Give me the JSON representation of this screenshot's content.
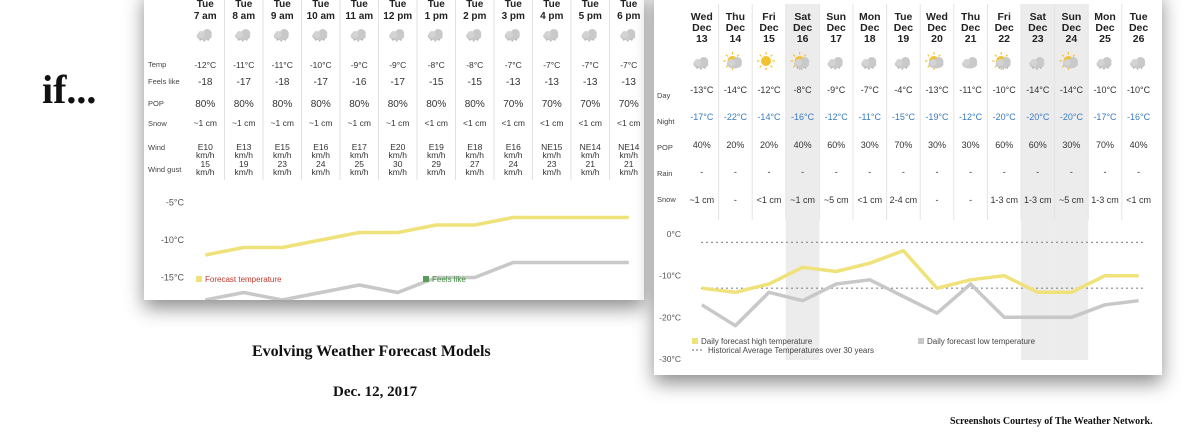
{
  "intro_text": "if...",
  "caption": {
    "title": "Evolving Weather Forecast Models",
    "date": "Dec. 12, 2017"
  },
  "credit": "Screenshots Courtesy of The Weather Network.",
  "colors": {
    "high": "#f0e27a",
    "low": "#c8c8c8",
    "avg": "#888888",
    "weekend": "#ececec"
  },
  "hourly": {
    "row_labels": {
      "temp": "Temp",
      "feels": "Feels like",
      "pop": "POP",
      "snow": "Snow",
      "wind": "Wind",
      "gust": "Wind gust"
    },
    "hours": [
      {
        "day": "Tue",
        "time": "7 am",
        "temp": "-12°C",
        "feels": "-18",
        "pop": "80%",
        "snow": "~1 cm",
        "wind": "E10",
        "wind_unit": "km/h",
        "gust": "15",
        "gust_unit": "km/h",
        "icon": "snow-cloud-icon"
      },
      {
        "day": "Tue",
        "time": "8 am",
        "temp": "-11°C",
        "feels": "-17",
        "pop": "80%",
        "snow": "~1 cm",
        "wind": "E13",
        "wind_unit": "km/h",
        "gust": "19",
        "gust_unit": "km/h",
        "icon": "snow-cloud-icon"
      },
      {
        "day": "Tue",
        "time": "9 am",
        "temp": "-11°C",
        "feels": "-18",
        "pop": "80%",
        "snow": "~1 cm",
        "wind": "E15",
        "wind_unit": "km/h",
        "gust": "23",
        "gust_unit": "km/h",
        "icon": "snow-cloud-icon"
      },
      {
        "day": "Tue",
        "time": "10 am",
        "temp": "-10°C",
        "feels": "-17",
        "pop": "80%",
        "snow": "~1 cm",
        "wind": "E16",
        "wind_unit": "km/h",
        "gust": "24",
        "gust_unit": "km/h",
        "icon": "snow-cloud-icon"
      },
      {
        "day": "Tue",
        "time": "11 am",
        "temp": "-9°C",
        "feels": "-16",
        "pop": "80%",
        "snow": "~1 cm",
        "wind": "E17",
        "wind_unit": "km/h",
        "gust": "25",
        "gust_unit": "km/h",
        "icon": "snow-cloud-icon"
      },
      {
        "day": "Tue",
        "time": "12 pm",
        "temp": "-9°C",
        "feels": "-17",
        "pop": "80%",
        "snow": "~1 cm",
        "wind": "E20",
        "wind_unit": "km/h",
        "gust": "30",
        "gust_unit": "km/h",
        "icon": "snow-cloud-icon"
      },
      {
        "day": "Tue",
        "time": "1 pm",
        "temp": "-8°C",
        "feels": "-15",
        "pop": "80%",
        "snow": "<1 cm",
        "wind": "E19",
        "wind_unit": "km/h",
        "gust": "29",
        "gust_unit": "km/h",
        "icon": "snow-cloud-icon"
      },
      {
        "day": "Tue",
        "time": "2 pm",
        "temp": "-8°C",
        "feels": "-15",
        "pop": "80%",
        "snow": "<1 cm",
        "wind": "E18",
        "wind_unit": "km/h",
        "gust": "27",
        "gust_unit": "km/h",
        "icon": "snow-cloud-icon"
      },
      {
        "day": "Tue",
        "time": "3 pm",
        "temp": "-7°C",
        "feels": "-13",
        "pop": "70%",
        "snow": "<1 cm",
        "wind": "E16",
        "wind_unit": "km/h",
        "gust": "24",
        "gust_unit": "km/h",
        "icon": "snow-cloud-icon"
      },
      {
        "day": "Tue",
        "time": "4 pm",
        "temp": "-7°C",
        "feels": "-13",
        "pop": "70%",
        "snow": "<1 cm",
        "wind": "NE15",
        "wind_unit": "km/h",
        "gust": "23",
        "gust_unit": "km/h",
        "icon": "snow-cloud-icon"
      },
      {
        "day": "Tue",
        "time": "5 pm",
        "temp": "-7°C",
        "feels": "-13",
        "pop": "70%",
        "snow": "<1 cm",
        "wind": "NE14",
        "wind_unit": "km/h",
        "gust": "21",
        "gust_unit": "km/h",
        "icon": "snow-cloud-icon"
      },
      {
        "day": "Tue",
        "time": "6 pm",
        "temp": "-7°C",
        "feels": "-13",
        "pop": "70%",
        "snow": "<1 cm",
        "wind": "NE14",
        "wind_unit": "km/h",
        "gust": "21",
        "gust_unit": "km/h",
        "icon": "snow-cloud-icon"
      }
    ],
    "chart_data": {
      "type": "line",
      "ylim": [
        -16,
        -4
      ],
      "yticks": [
        {
          "v": -5,
          "label": "-5°C"
        },
        {
          "v": -10,
          "label": "-10°C"
        },
        {
          "v": -15,
          "label": "-15°C"
        }
      ],
      "series": [
        {
          "name": "Forecast temperature",
          "values": [
            -12,
            -11,
            -11,
            -10,
            -9,
            -9,
            -8,
            -8,
            -7,
            -7,
            -7,
            -7
          ]
        },
        {
          "name": "Feels like",
          "values": [
            -18,
            -17,
            -18,
            -17,
            -16,
            -17,
            -15,
            -15,
            -13,
            -13,
            -13,
            -13
          ]
        }
      ]
    }
  },
  "daily": {
    "row_labels": {
      "day": "Day",
      "night": "Night",
      "pop": "POP",
      "rain": "Rain",
      "snow": "Snow"
    },
    "days": [
      {
        "dow": "Wed",
        "month": "Dec",
        "date": "13",
        "day": "-13°C",
        "night": "-17°C",
        "pop": "40%",
        "rain": "-",
        "snow": "~1 cm",
        "icon": "snow-cloud-icon",
        "weekend": false
      },
      {
        "dow": "Thu",
        "month": "Dec",
        "date": "14",
        "day": "-14°C",
        "night": "-22°C",
        "pop": "20%",
        "rain": "-",
        "snow": "-",
        "icon": "sun-cloud-icon",
        "weekend": false
      },
      {
        "dow": "Fri",
        "month": "Dec",
        "date": "15",
        "day": "-12°C",
        "night": "-14°C",
        "pop": "20%",
        "rain": "-",
        "snow": "<1 cm",
        "icon": "sun-icon",
        "weekend": false
      },
      {
        "dow": "Sat",
        "month": "Dec",
        "date": "16",
        "day": "-8°C",
        "night": "-16°C",
        "pop": "40%",
        "rain": "-",
        "snow": "~1 cm",
        "icon": "sun-snow-icon",
        "weekend": true
      },
      {
        "dow": "Sun",
        "month": "Dec",
        "date": "17",
        "day": "-9°C",
        "night": "-12°C",
        "pop": "60%",
        "rain": "-",
        "snow": "~5 cm",
        "icon": "snow-cloud-icon",
        "weekend": false
      },
      {
        "dow": "Mon",
        "month": "Dec",
        "date": "18",
        "day": "-7°C",
        "night": "-11°C",
        "pop": "30%",
        "rain": "-",
        "snow": "<1 cm",
        "icon": "snow-cloud-icon",
        "weekend": false
      },
      {
        "dow": "Tue",
        "month": "Dec",
        "date": "19",
        "day": "-4°C",
        "night": "-15°C",
        "pop": "70%",
        "rain": "-",
        "snow": "2-4 cm",
        "icon": "snow-cloud-icon",
        "weekend": false
      },
      {
        "dow": "Wed",
        "month": "Dec",
        "date": "20",
        "day": "-13°C",
        "night": "-19°C",
        "pop": "30%",
        "rain": "-",
        "snow": "-",
        "icon": "sun-cloud-icon",
        "weekend": false
      },
      {
        "dow": "Thu",
        "month": "Dec",
        "date": "21",
        "day": "-11°C",
        "night": "-12°C",
        "pop": "30%",
        "rain": "-",
        "snow": "-",
        "icon": "cloud-icon",
        "weekend": false
      },
      {
        "dow": "Fri",
        "month": "Dec",
        "date": "22",
        "day": "-10°C",
        "night": "-20°C",
        "pop": "60%",
        "rain": "-",
        "snow": "1-3 cm",
        "icon": "sun-snow-icon",
        "weekend": false
      },
      {
        "dow": "Sat",
        "month": "Dec",
        "date": "23",
        "day": "-14°C",
        "night": "-20°C",
        "pop": "60%",
        "rain": "-",
        "snow": "1-3 cm",
        "icon": "snow-cloud-icon",
        "weekend": true
      },
      {
        "dow": "Sun",
        "month": "Dec",
        "date": "24",
        "day": "-14°C",
        "night": "-20°C",
        "pop": "30%",
        "rain": "-",
        "snow": "~5 cm",
        "icon": "sun-cloud-icon",
        "weekend": true
      },
      {
        "dow": "Mon",
        "month": "Dec",
        "date": "25",
        "day": "-10°C",
        "night": "-17°C",
        "pop": "70%",
        "rain": "-",
        "snow": "1-3 cm",
        "icon": "snow-cloud-icon",
        "weekend": false
      },
      {
        "dow": "Tue",
        "month": "Dec",
        "date": "26",
        "day": "-10°C",
        "night": "-16°C",
        "pop": "40%",
        "rain": "-",
        "snow": "<1 cm",
        "icon": "snow-cloud-icon",
        "weekend": false
      }
    ],
    "chart_data": {
      "type": "line",
      "ylim": [
        -30,
        0
      ],
      "yticks": [
        {
          "v": 0,
          "label": "0°C"
        },
        {
          "v": -10,
          "label": "-10°C"
        },
        {
          "v": -20,
          "label": "-20°C"
        },
        {
          "v": -30,
          "label": "-30°C"
        }
      ],
      "series": [
        {
          "name": "Daily forecast high temperature",
          "values": [
            -13,
            -14,
            -12,
            -8,
            -9,
            -7,
            -4,
            -13,
            -11,
            -10,
            -14,
            -14,
            -10,
            -10
          ]
        },
        {
          "name": "Daily forecast low temperature",
          "values": [
            -17,
            -22,
            -14,
            -16,
            -12,
            -11,
            -15,
            -19,
            -12,
            -20,
            -20,
            -20,
            -17,
            -16
          ]
        }
      ],
      "historical_average": {
        "name": "Historical Average Temperatures over 30 years",
        "high": -2,
        "low": -13
      }
    }
  }
}
